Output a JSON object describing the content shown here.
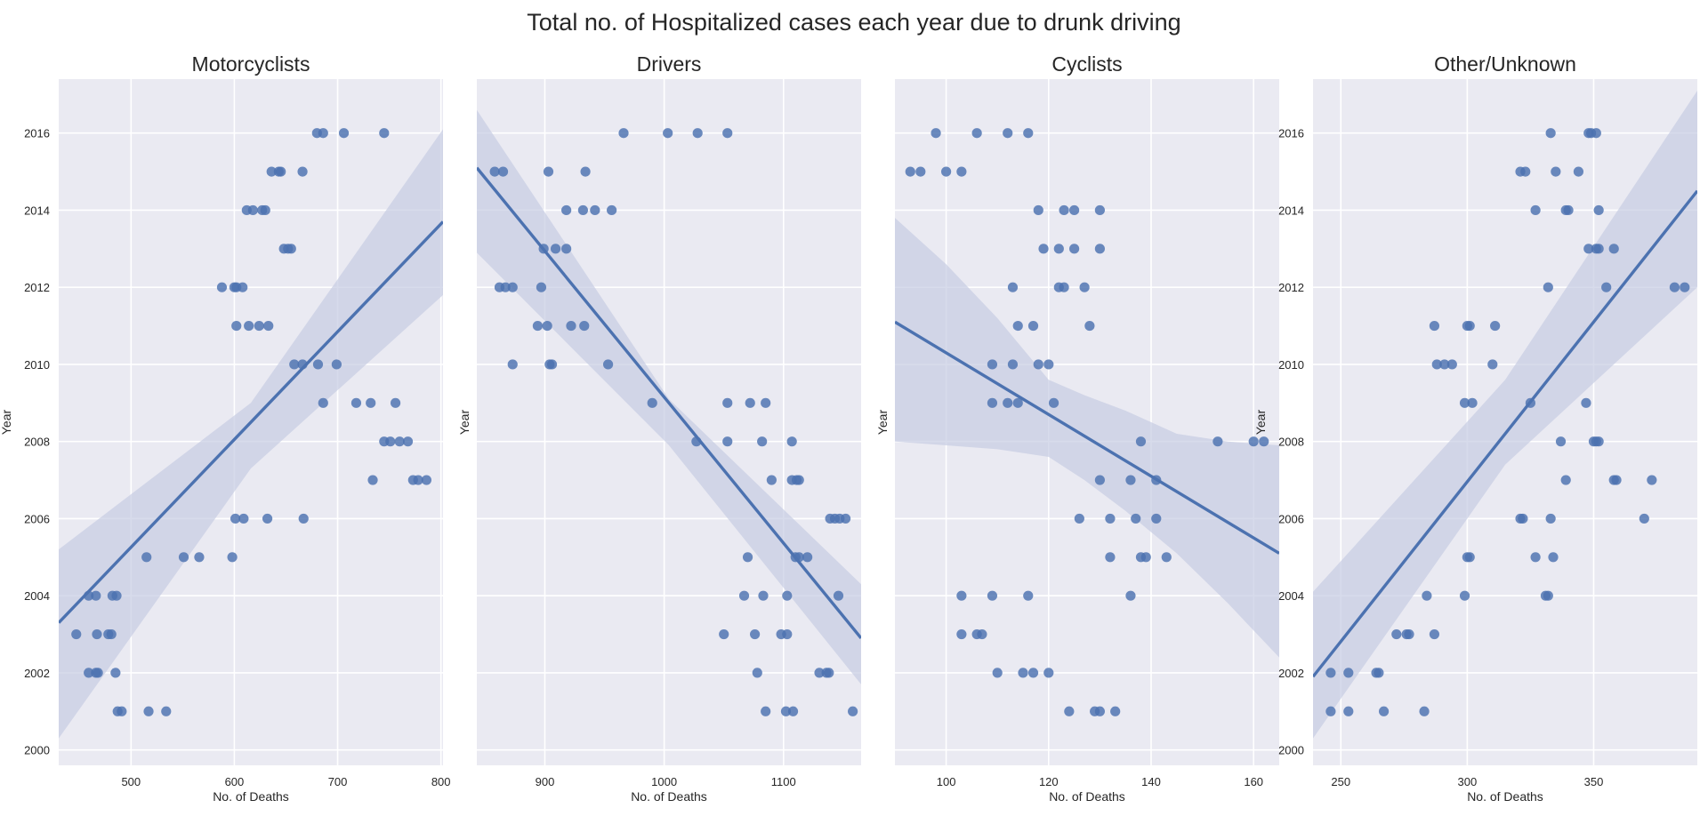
{
  "title": "Total no. of Hospitalized cases each year due to drunk driving",
  "colors": {
    "panel_bg": "#EAEAF2",
    "grid": "#FFFFFF",
    "point": "#4C72B0",
    "line": "#4C72B0",
    "band": "#C6CCE2"
  },
  "chart_data": [
    {
      "type": "scatter",
      "title": "Motorcyclists",
      "xlabel": "No. of Deaths",
      "ylabel": "Year",
      "xlim": [
        430,
        802
      ],
      "ylim": [
        1999.6,
        2017.4
      ],
      "xticks": [
        500,
        600,
        700,
        800
      ],
      "yticks": [
        2000,
        2002,
        2004,
        2006,
        2008,
        2010,
        2012,
        2014,
        2016
      ],
      "show_yticklabels": true,
      "grid": true,
      "regression": {
        "x": [
          430,
          802
        ],
        "y": [
          2003.3,
          2013.7
        ]
      },
      "band": {
        "x": [
          430,
          616,
          802
        ],
        "lower": [
          2000.3,
          2007.3,
          2011.8
        ],
        "upper": [
          2005.2,
          2009.0,
          2016.1
        ]
      },
      "points": [
        [
          680,
          2016
        ],
        [
          686,
          2016
        ],
        [
          706,
          2016
        ],
        [
          745,
          2016
        ],
        [
          636,
          2015
        ],
        [
          643,
          2015
        ],
        [
          645,
          2015
        ],
        [
          666,
          2015
        ],
        [
          612,
          2014
        ],
        [
          618,
          2014
        ],
        [
          627,
          2014
        ],
        [
          630,
          2014
        ],
        [
          648,
          2013
        ],
        [
          652,
          2013
        ],
        [
          655,
          2013
        ],
        [
          588,
          2012
        ],
        [
          600,
          2012
        ],
        [
          602,
          2012
        ],
        [
          608,
          2012
        ],
        [
          602,
          2011
        ],
        [
          614,
          2011
        ],
        [
          624,
          2011
        ],
        [
          633,
          2011
        ],
        [
          658,
          2010
        ],
        [
          666,
          2010
        ],
        [
          681,
          2010
        ],
        [
          699,
          2010
        ],
        [
          686,
          2009
        ],
        [
          718,
          2009
        ],
        [
          732,
          2009
        ],
        [
          756,
          2009
        ],
        [
          745,
          2008
        ],
        [
          751,
          2008
        ],
        [
          760,
          2008
        ],
        [
          768,
          2008
        ],
        [
          734,
          2007
        ],
        [
          773,
          2007
        ],
        [
          778,
          2007
        ],
        [
          786,
          2007
        ],
        [
          601,
          2006
        ],
        [
          609,
          2006
        ],
        [
          632,
          2006
        ],
        [
          667,
          2006
        ],
        [
          515,
          2005
        ],
        [
          551,
          2005
        ],
        [
          566,
          2005
        ],
        [
          598,
          2005
        ],
        [
          459,
          2004
        ],
        [
          466,
          2004
        ],
        [
          482,
          2004
        ],
        [
          486,
          2004
        ],
        [
          447,
          2003
        ],
        [
          467,
          2003
        ],
        [
          478,
          2003
        ],
        [
          481,
          2003
        ],
        [
          459,
          2002
        ],
        [
          466,
          2002
        ],
        [
          468,
          2002
        ],
        [
          485,
          2002
        ],
        [
          487,
          2001
        ],
        [
          491,
          2001
        ],
        [
          517,
          2001
        ],
        [
          534,
          2001
        ]
      ]
    },
    {
      "type": "scatter",
      "title": "Drivers",
      "xlabel": "No. of Deaths",
      "ylabel": "Year",
      "xlim": [
        843,
        1165
      ],
      "ylim": [
        1999.6,
        2017.4
      ],
      "xticks": [
        900,
        1000,
        1100
      ],
      "yticks": [
        2000,
        2002,
        2004,
        2006,
        2008,
        2010,
        2012,
        2014,
        2016
      ],
      "show_yticklabels": false,
      "grid": true,
      "regression": {
        "x": [
          843,
          1165
        ],
        "y": [
          2015.1,
          2002.9
        ]
      },
      "band": {
        "x": [
          843,
          1004,
          1165
        ],
        "lower": [
          2012.9,
          2007.9,
          2001.7
        ],
        "upper": [
          2016.6,
          2009.1,
          2004.3
        ]
      },
      "points": [
        [
          966,
          2016
        ],
        [
          1003,
          2016
        ],
        [
          1028,
          2016
        ],
        [
          1053,
          2016
        ],
        [
          858,
          2015
        ],
        [
          865,
          2015
        ],
        [
          903,
          2015
        ],
        [
          934,
          2015
        ],
        [
          918,
          2014
        ],
        [
          932,
          2014
        ],
        [
          942,
          2014
        ],
        [
          956,
          2014
        ],
        [
          899,
          2013
        ],
        [
          909,
          2013
        ],
        [
          918,
          2013
        ],
        [
          862,
          2012
        ],
        [
          867,
          2012
        ],
        [
          873,
          2012
        ],
        [
          897,
          2012
        ],
        [
          894,
          2011
        ],
        [
          902,
          2011
        ],
        [
          922,
          2011
        ],
        [
          933,
          2011
        ],
        [
          873,
          2010
        ],
        [
          904,
          2010
        ],
        [
          906,
          2010
        ],
        [
          953,
          2010
        ],
        [
          990,
          2009
        ],
        [
          1053,
          2009
        ],
        [
          1072,
          2009
        ],
        [
          1085,
          2009
        ],
        [
          1027,
          2008
        ],
        [
          1053,
          2008
        ],
        [
          1082,
          2008
        ],
        [
          1107,
          2008
        ],
        [
          1090,
          2007
        ],
        [
          1107,
          2007
        ],
        [
          1111,
          2007
        ],
        [
          1113,
          2007
        ],
        [
          1139,
          2006
        ],
        [
          1143,
          2006
        ],
        [
          1147,
          2006
        ],
        [
          1152,
          2006
        ],
        [
          1070,
          2005
        ],
        [
          1110,
          2005
        ],
        [
          1113,
          2005
        ],
        [
          1120,
          2005
        ],
        [
          1067,
          2004
        ],
        [
          1083,
          2004
        ],
        [
          1103,
          2004
        ],
        [
          1146,
          2004
        ],
        [
          1050,
          2003
        ],
        [
          1076,
          2003
        ],
        [
          1098,
          2003
        ],
        [
          1103,
          2003
        ],
        [
          1078,
          2002
        ],
        [
          1130,
          2002
        ],
        [
          1136,
          2002
        ],
        [
          1138,
          2002
        ],
        [
          1085,
          2001
        ],
        [
          1102,
          2001
        ],
        [
          1108,
          2001
        ],
        [
          1158,
          2001
        ]
      ]
    },
    {
      "type": "scatter",
      "title": "Cyclists",
      "xlabel": "No. of Deaths",
      "ylabel": "Year",
      "xlim": [
        90,
        165
      ],
      "ylim": [
        1999.6,
        2017.4
      ],
      "xticks": [
        100,
        120,
        140,
        160
      ],
      "yticks": [
        2000,
        2002,
        2004,
        2006,
        2008,
        2010,
        2012,
        2014,
        2016
      ],
      "show_yticklabels": false,
      "grid": true,
      "regression": {
        "x": [
          90,
          165
        ],
        "y": [
          2011.1,
          2005.1
        ]
      },
      "band": {
        "x": [
          90,
          100,
          110,
          120,
          127,
          135,
          145,
          155,
          165
        ],
        "lower": [
          2008.0,
          2007.9,
          2007.8,
          2007.6,
          2007.0,
          2006.2,
          2005.1,
          2003.8,
          2002.4
        ],
        "upper": [
          2013.8,
          2012.6,
          2011.2,
          2009.6,
          2009.2,
          2008.8,
          2008.2,
          2008.0,
          2007.9
        ]
      },
      "points": [
        [
          98,
          2016
        ],
        [
          106,
          2016
        ],
        [
          112,
          2016
        ],
        [
          116,
          2016
        ],
        [
          93,
          2015
        ],
        [
          95,
          2015
        ],
        [
          100,
          2015
        ],
        [
          103,
          2015
        ],
        [
          118,
          2014
        ],
        [
          123,
          2014
        ],
        [
          125,
          2014
        ],
        [
          130,
          2014
        ],
        [
          119,
          2013
        ],
        [
          122,
          2013
        ],
        [
          125,
          2013
        ],
        [
          130,
          2013
        ],
        [
          113,
          2012
        ],
        [
          122,
          2012
        ],
        [
          123,
          2012
        ],
        [
          127,
          2012
        ],
        [
          114,
          2011
        ],
        [
          117,
          2011
        ],
        [
          128,
          2011
        ],
        [
          109,
          2010
        ],
        [
          113,
          2010
        ],
        [
          118,
          2010
        ],
        [
          120,
          2010
        ],
        [
          109,
          2009
        ],
        [
          112,
          2009
        ],
        [
          114,
          2009
        ],
        [
          121,
          2009
        ],
        [
          138,
          2008
        ],
        [
          153,
          2008
        ],
        [
          160,
          2008
        ],
        [
          162,
          2008
        ],
        [
          130,
          2007
        ],
        [
          136,
          2007
        ],
        [
          141,
          2007
        ],
        [
          126,
          2006
        ],
        [
          132,
          2006
        ],
        [
          137,
          2006
        ],
        [
          141,
          2006
        ],
        [
          132,
          2005
        ],
        [
          138,
          2005
        ],
        [
          139,
          2005
        ],
        [
          143,
          2005
        ],
        [
          103,
          2004
        ],
        [
          109,
          2004
        ],
        [
          116,
          2004
        ],
        [
          136,
          2004
        ],
        [
          103,
          2003
        ],
        [
          106,
          2003
        ],
        [
          107,
          2003
        ],
        [
          110,
          2002
        ],
        [
          115,
          2002
        ],
        [
          117,
          2002
        ],
        [
          120,
          2002
        ],
        [
          124,
          2001
        ],
        [
          129,
          2001
        ],
        [
          130,
          2001
        ],
        [
          133,
          2001
        ]
      ]
    },
    {
      "type": "scatter",
      "title": "Other/Unknown",
      "xlabel": "No. of Deaths",
      "ylabel": "Year",
      "xlim": [
        239,
        391
      ],
      "ylim": [
        1999.6,
        2017.4
      ],
      "xticks": [
        250,
        300,
        350
      ],
      "yticks": [
        2000,
        2002,
        2004,
        2006,
        2008,
        2010,
        2012,
        2014,
        2016
      ],
      "show_yticklabels": true,
      "grid": true,
      "regression": {
        "x": [
          239,
          391
        ],
        "y": [
          2001.9,
          2014.5
        ]
      },
      "band": {
        "x": [
          239,
          315,
          391
        ],
        "lower": [
          2000.3,
          2007.4,
          2012.0
        ],
        "upper": [
          2004.1,
          2009.6,
          2017.1
        ]
      },
      "points": [
        [
          333,
          2016
        ],
        [
          348,
          2016
        ],
        [
          349,
          2016
        ],
        [
          351,
          2016
        ],
        [
          321,
          2015
        ],
        [
          323,
          2015
        ],
        [
          335,
          2015
        ],
        [
          344,
          2015
        ],
        [
          327,
          2014
        ],
        [
          339,
          2014
        ],
        [
          340,
          2014
        ],
        [
          352,
          2014
        ],
        [
          348,
          2013
        ],
        [
          351,
          2013
        ],
        [
          352,
          2013
        ],
        [
          358,
          2013
        ],
        [
          332,
          2012
        ],
        [
          355,
          2012
        ],
        [
          382,
          2012
        ],
        [
          386,
          2012
        ],
        [
          287,
          2011
        ],
        [
          300,
          2011
        ],
        [
          301,
          2011
        ],
        [
          311,
          2011
        ],
        [
          288,
          2010
        ],
        [
          291,
          2010
        ],
        [
          294,
          2010
        ],
        [
          310,
          2010
        ],
        [
          299,
          2009
        ],
        [
          302,
          2009
        ],
        [
          325,
          2009
        ],
        [
          347,
          2009
        ],
        [
          337,
          2008
        ],
        [
          350,
          2008
        ],
        [
          351,
          2008
        ],
        [
          352,
          2008
        ],
        [
          339,
          2007
        ],
        [
          358,
          2007
        ],
        [
          359,
          2007
        ],
        [
          373,
          2007
        ],
        [
          321,
          2006
        ],
        [
          322,
          2006
        ],
        [
          333,
          2006
        ],
        [
          370,
          2006
        ],
        [
          300,
          2005
        ],
        [
          301,
          2005
        ],
        [
          327,
          2005
        ],
        [
          334,
          2005
        ],
        [
          284,
          2004
        ],
        [
          299,
          2004
        ],
        [
          331,
          2004
        ],
        [
          332,
          2004
        ],
        [
          272,
          2003
        ],
        [
          276,
          2003
        ],
        [
          277,
          2003
        ],
        [
          287,
          2003
        ],
        [
          246,
          2002
        ],
        [
          253,
          2002
        ],
        [
          264,
          2002
        ],
        [
          265,
          2002
        ],
        [
          246,
          2001
        ],
        [
          253,
          2001
        ],
        [
          267,
          2001
        ],
        [
          283,
          2001
        ]
      ]
    }
  ]
}
